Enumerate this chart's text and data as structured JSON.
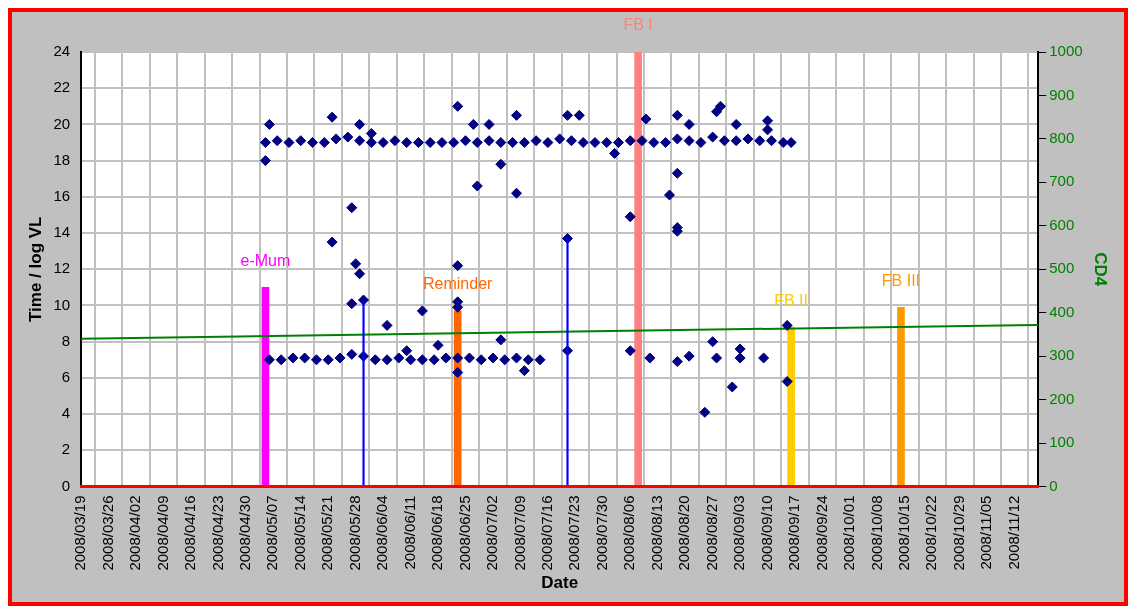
{
  "chart_data": {
    "type": "scatter",
    "xlabel": "Date",
    "ylabel": "Time / log VL",
    "y2label": "CD4",
    "xlim": [
      "2008-03-19",
      "2008-11-18"
    ],
    "xticks": [
      {
        "value": "2008-03-19",
        "label": "2008/03/19"
      },
      {
        "value": "2008-03-26",
        "label": "2008/03/26"
      },
      {
        "value": "2008-04-02",
        "label": "2008/04/02"
      },
      {
        "value": "2008-04-09",
        "label": "2008/04/09"
      },
      {
        "value": "2008-04-16",
        "label": "2008/04/16"
      },
      {
        "value": "2008-04-23",
        "label": "2008/04/23"
      },
      {
        "value": "2008-04-30",
        "label": "2008/04/30"
      },
      {
        "value": "2008-05-07",
        "label": "2008/05/07"
      },
      {
        "value": "2008-05-14",
        "label": "2008/05/14"
      },
      {
        "value": "2008-05-21",
        "label": "2008/05/21"
      },
      {
        "value": "2008-05-28",
        "label": "2008/05/28"
      },
      {
        "value": "2008-06-04",
        "label": "2008/06/04"
      },
      {
        "value": "2008-06-11",
        "label": "2008/06/11"
      },
      {
        "value": "2008-06-18",
        "label": "2008/06/18"
      },
      {
        "value": "2008-06-25",
        "label": "2008/06/25"
      },
      {
        "value": "2008-07-02",
        "label": "2008/07/02"
      },
      {
        "value": "2008-07-09",
        "label": "2008/07/09"
      },
      {
        "value": "2008-07-16",
        "label": "2008/07/16"
      },
      {
        "value": "2008-07-23",
        "label": "2008/07/23"
      },
      {
        "value": "2008-07-30",
        "label": "2008/07/30"
      },
      {
        "value": "2008-08-06",
        "label": "2008/08/06"
      },
      {
        "value": "2008-08-13",
        "label": "2008/08/13"
      },
      {
        "value": "2008-08-20",
        "label": "2008/08/20"
      },
      {
        "value": "2008-08-27",
        "label": "2008/08/27"
      },
      {
        "value": "2008-09-03",
        "label": "2008/09/03"
      },
      {
        "value": "2008-09-10",
        "label": "2008/09/10"
      },
      {
        "value": "2008-09-17",
        "label": "2008/09/17"
      },
      {
        "value": "2008-09-24",
        "label": "2008/09/24"
      },
      {
        "value": "2008-10-01",
        "label": "2008/10/01"
      },
      {
        "value": "2008-10-08",
        "label": "2008/10/08"
      },
      {
        "value": "2008-10-15",
        "label": "2008/10/15"
      },
      {
        "value": "2008-10-22",
        "label": "2008/10/22"
      },
      {
        "value": "2008-10-29",
        "label": "2008/10/29"
      },
      {
        "value": "2008-11-05",
        "label": "2008/11/05"
      },
      {
        "value": "2008-11-12",
        "label": "2008/11/12"
      }
    ],
    "ylim": [
      0,
      24
    ],
    "yticks": [
      0,
      2,
      4,
      6,
      8,
      10,
      12,
      14,
      16,
      18,
      20,
      22,
      24
    ],
    "y2lim": [
      0,
      1000
    ],
    "y2ticks": [
      0,
      100,
      200,
      300,
      400,
      500,
      600,
      700,
      800,
      900,
      1000
    ],
    "grid": true,
    "marker": "diamond",
    "series": [
      {
        "type": "line",
        "axis": "y2",
        "color": "#008000",
        "marker": "none",
        "x": [
          "2008-03-19",
          "2008-11-18"
        ],
        "values": [
          340,
          372
        ]
      },
      {
        "type": "bar",
        "name": "e-Mum",
        "color": "#ff00ff",
        "x": [
          "2008-05-05"
        ],
        "values": [
          11
        ]
      },
      {
        "type": "bar",
        "name": "Reminder",
        "color": "#ff6600",
        "x": [
          "2008-06-23"
        ],
        "values": [
          9.7
        ]
      },
      {
        "type": "bar",
        "name": "FB I",
        "color": "#ff8080",
        "x": [
          "2008-08-08"
        ],
        "values": [
          24
        ]
      },
      {
        "type": "bar",
        "name": "FB II",
        "color": "#ffcc00",
        "x": [
          "2008-09-16"
        ],
        "values": [
          8.8
        ]
      },
      {
        "type": "bar",
        "name": "FB III",
        "color": "#ff9900",
        "x": [
          "2008-10-14"
        ],
        "values": [
          9.9
        ]
      },
      {
        "type": "bar",
        "color": "#0000ff",
        "x": [
          "2008-05-30",
          "2008-07-21"
        ],
        "values": [
          10.3,
          13.7
        ]
      },
      {
        "color": "#000080",
        "x": [
          "2008-05-05",
          "2008-05-08",
          "2008-05-11",
          "2008-05-14",
          "2008-05-17",
          "2008-05-20",
          "2008-05-23",
          "2008-05-26",
          "2008-05-29",
          "2008-06-01",
          "2008-06-04",
          "2008-06-07",
          "2008-06-10",
          "2008-06-13",
          "2008-06-16",
          "2008-06-19",
          "2008-06-22",
          "2008-06-25",
          "2008-06-28",
          "2008-07-01",
          "2008-07-04",
          "2008-07-07",
          "2008-07-10",
          "2008-07-13",
          "2008-07-16",
          "2008-07-19",
          "2008-07-22",
          "2008-07-25",
          "2008-07-28",
          "2008-07-31",
          "2008-08-03",
          "2008-08-06",
          "2008-08-09",
          "2008-08-12",
          "2008-08-15",
          "2008-08-18",
          "2008-08-21",
          "2008-08-24",
          "2008-08-27",
          "2008-08-30",
          "2008-09-02",
          "2008-09-05",
          "2008-09-08",
          "2008-09-11",
          "2008-09-14",
          "2008-09-16",
          "2008-05-06",
          "2008-05-09",
          "2008-05-12",
          "2008-05-15",
          "2008-05-18",
          "2008-05-21",
          "2008-05-24",
          "2008-05-27",
          "2008-05-30",
          "2008-06-02",
          "2008-06-05",
          "2008-06-08",
          "2008-06-11",
          "2008-06-14",
          "2008-06-17",
          "2008-06-20",
          "2008-06-23",
          "2008-06-26",
          "2008-06-29",
          "2008-07-02",
          "2008-07-05",
          "2008-07-08",
          "2008-07-11",
          "2008-07-14",
          "2008-05-05",
          "2008-05-06",
          "2008-05-22",
          "2008-05-29",
          "2008-06-01",
          "2008-05-27",
          "2008-05-22",
          "2008-05-28",
          "2008-05-29",
          "2008-05-27",
          "2008-05-30",
          "2008-06-05",
          "2008-06-14",
          "2008-06-23",
          "2008-06-23",
          "2008-06-23",
          "2008-06-23",
          "2008-06-23",
          "2008-06-27",
          "2008-06-28",
          "2008-07-01",
          "2008-07-04",
          "2008-07-04",
          "2008-07-08",
          "2008-07-08",
          "2008-07-10",
          "2008-07-21",
          "2008-07-21",
          "2008-07-21",
          "2008-07-24",
          "2008-08-02",
          "2008-08-06",
          "2008-08-06",
          "2008-08-10",
          "2008-08-11",
          "2008-08-16",
          "2008-08-18",
          "2008-08-18",
          "2008-08-18",
          "2008-08-18",
          "2008-08-18",
          "2008-08-21",
          "2008-08-21",
          "2008-08-25",
          "2008-08-27",
          "2008-08-28",
          "2008-08-28",
          "2008-08-29",
          "2008-09-01",
          "2008-09-02",
          "2008-09-03",
          "2008-09-03",
          "2008-09-09",
          "2008-09-10",
          "2008-09-10",
          "2008-09-15",
          "2008-09-15",
          "2008-06-18",
          "2008-06-10"
        ],
        "values": [
          19,
          19.1,
          19,
          19.1,
          19,
          19,
          19.2,
          19.3,
          19.1,
          19,
          19,
          19.1,
          19,
          19,
          19,
          19,
          19,
          19.1,
          19,
          19.1,
          19,
          19,
          19,
          19.1,
          19,
          19.2,
          19.1,
          19,
          19,
          19,
          19,
          19.1,
          19.1,
          19,
          19,
          19.2,
          19.1,
          19,
          19.3,
          19.1,
          19.1,
          19.2,
          19.1,
          19.1,
          19,
          19,
          7,
          7,
          7.1,
          7.1,
          7,
          7,
          7.1,
          7.3,
          7.2,
          7,
          7,
          7.1,
          7,
          7,
          7,
          7.1,
          7.1,
          7.1,
          7,
          7.1,
          7,
          7.1,
          7,
          7,
          18,
          20,
          20.4,
          20,
          19.5,
          15.4,
          13.5,
          12.3,
          11.75,
          10.1,
          10.3,
          8.9,
          9.7,
          21,
          12.2,
          10.2,
          9.9,
          6.3,
          20,
          16.6,
          20,
          17.8,
          8.1,
          20.5,
          16.2,
          6.4,
          20.5,
          13.7,
          7.5,
          20.5,
          18.4,
          14.9,
          7.5,
          20.3,
          7.1,
          16.1,
          20.5,
          17.3,
          14.3,
          14.1,
          6.9,
          20,
          7.2,
          4.1,
          8,
          20.7,
          7.1,
          21,
          5.5,
          20,
          7.6,
          7.1,
          7.1,
          20.2,
          19.7,
          8.9,
          5.8,
          7.8,
          7.5
        ]
      }
    ]
  }
}
